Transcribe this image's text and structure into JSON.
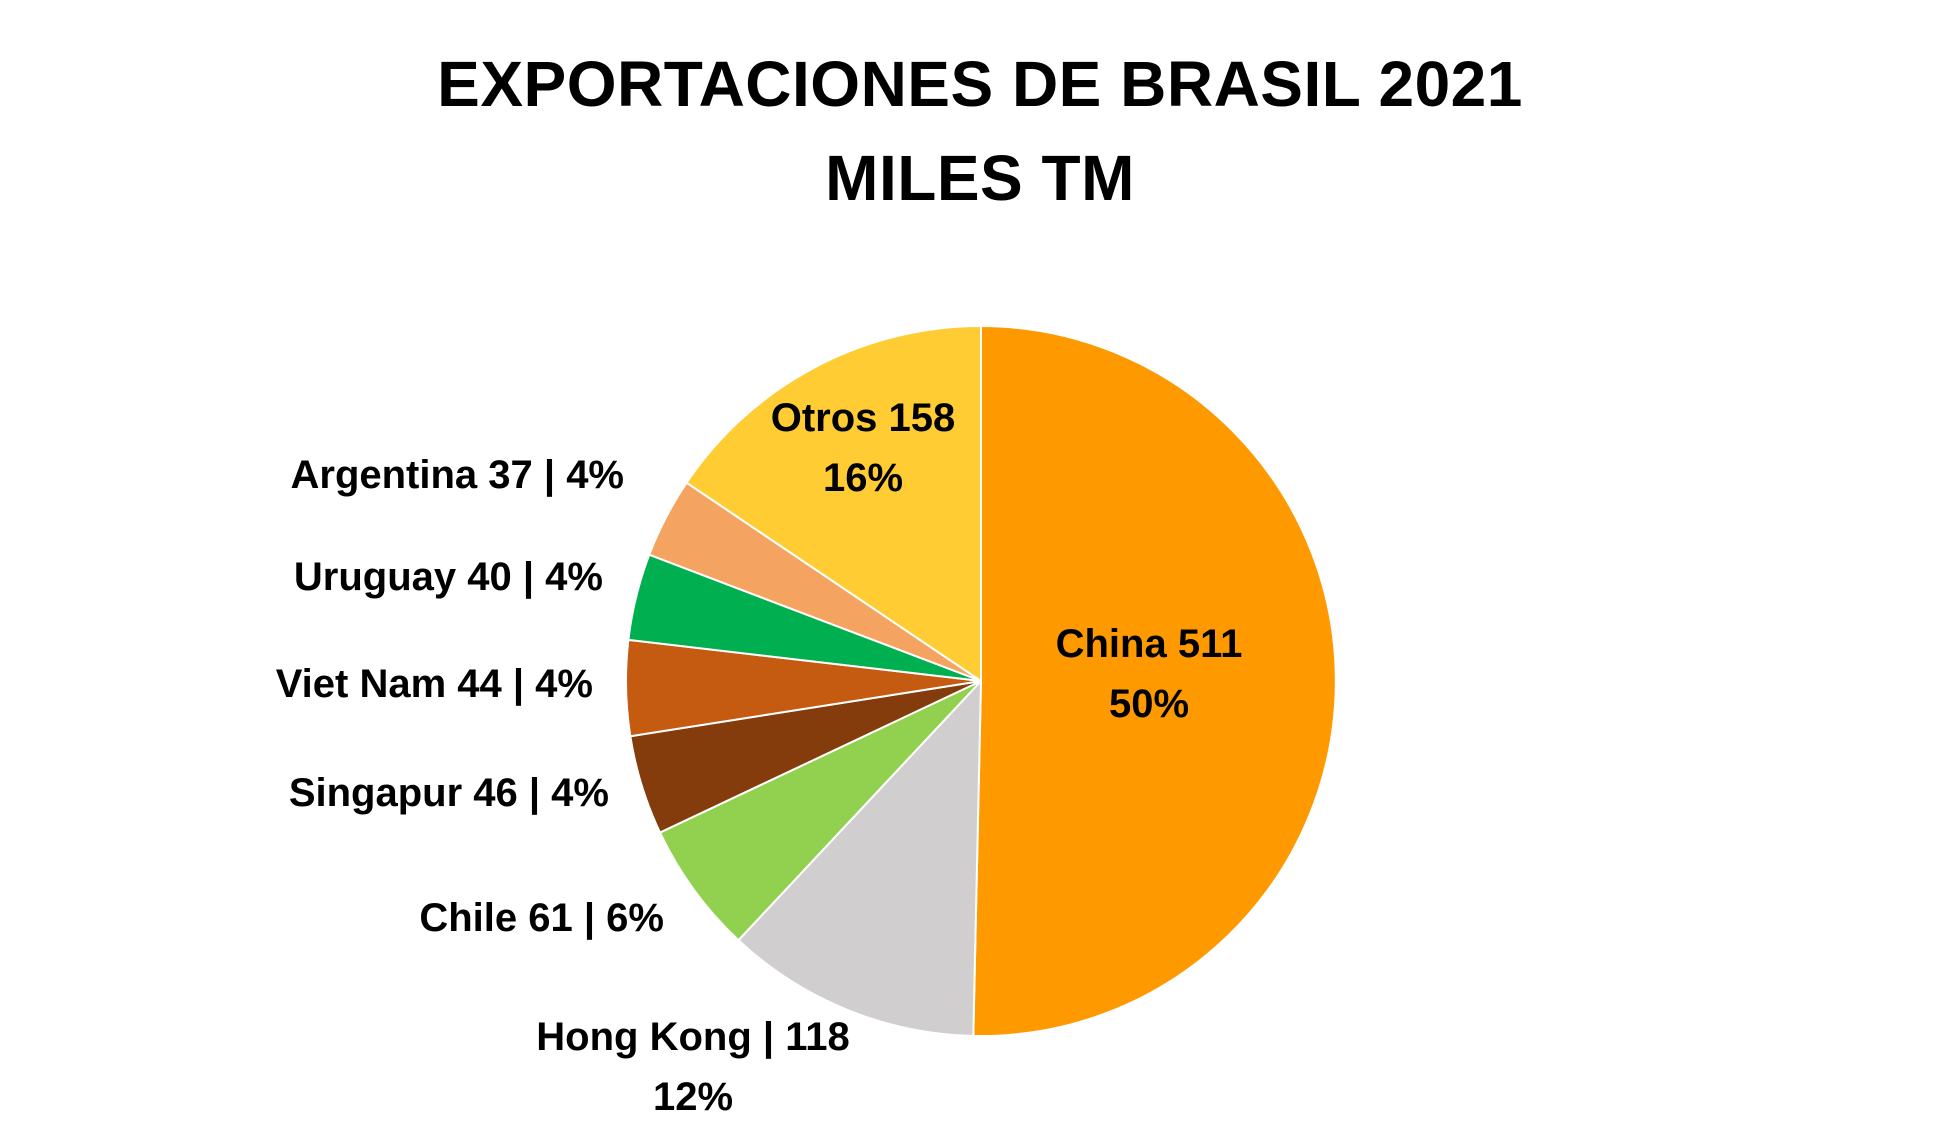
{
  "chart_data": {
    "type": "pie",
    "title": "EXPORTACIONES DE BRASIL 2021",
    "subtitle": "MILES TM",
    "slices": [
      {
        "name": "China",
        "value": 511,
        "percent": 50,
        "color": "#FF9900",
        "label_lines": [
          "China 511",
          "50%"
        ]
      },
      {
        "name": "Hong Kong",
        "value": 118,
        "percent": 12,
        "color": "#D0CECE",
        "label_lines": [
          "Hong Kong | 118",
          "12%"
        ]
      },
      {
        "name": "Chile",
        "value": 61,
        "percent": 6,
        "color": "#92D050",
        "label_lines": [
          "Chile 61 | 6%"
        ]
      },
      {
        "name": "Singapur",
        "value": 46,
        "percent": 4,
        "color": "#843C0C",
        "label_lines": [
          "Singapur 46 | 4%"
        ]
      },
      {
        "name": "Viet Nam",
        "value": 44,
        "percent": 4,
        "color": "#C55A11",
        "label_lines": [
          "Viet Nam 44 | 4%"
        ]
      },
      {
        "name": "Uruguay",
        "value": 40,
        "percent": 4,
        "color": "#00B050",
        "label_lines": [
          "Uruguay 40 | 4%"
        ]
      },
      {
        "name": "Argentina",
        "value": 37,
        "percent": 4,
        "color": "#F4A460",
        "label_lines": [
          "Argentina 37 | 4%"
        ]
      },
      {
        "name": "Otros",
        "value": 158,
        "percent": 16,
        "color": "#FFCC33",
        "label_lines": [
          "Otros 158",
          "16%"
        ]
      }
    ]
  }
}
